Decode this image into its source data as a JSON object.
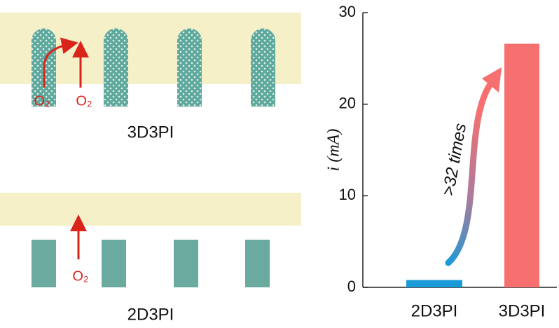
{
  "diagram": {
    "top_label": "3D3PI",
    "bottom_label": "2D3PI",
    "o2_labels": [
      "O₂",
      "O₂",
      "O₂"
    ]
  },
  "chart_data": {
    "type": "bar",
    "categories": [
      "2D3PI",
      "3D3PI"
    ],
    "values": [
      0.8,
      26.6
    ],
    "colors": [
      "#1a9ad6",
      "#f77070"
    ],
    "ylabel": "i (mA)",
    "annotation": ">32 times",
    "ylim": [
      0,
      30
    ],
    "yticks": [
      0,
      10,
      20,
      30
    ]
  }
}
